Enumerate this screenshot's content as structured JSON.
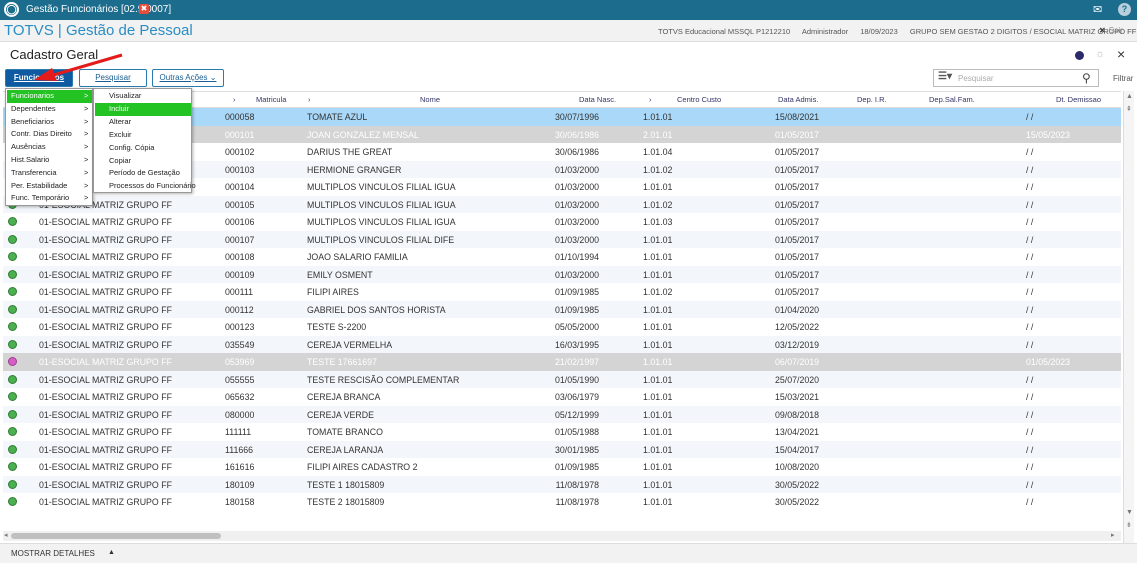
{
  "window": {
    "title": "Gestão Funcionários [02.9.0007]",
    "close_glyph": "✖"
  },
  "app": {
    "name": "TOTVS | Gestão de Pessoal",
    "environment": "TOTVS Educacional MSSQL P1212210",
    "user": "Administrador",
    "date": "18/09/2023",
    "company": "GRUPO SEM GESTAO 2 DIGITOS / ESOCIAL MATRIZ GRUPO FF",
    "exit_label": "Sair"
  },
  "page": {
    "title": "Cadastro Geral"
  },
  "toolbar": {
    "funcionarios_label": "Funcionarios",
    "pesquisar_label": "Pesquisar",
    "outras_acoes_label": "Outras Ações",
    "search_placeholder": "Pesquisar",
    "filter_label": "Filtrar"
  },
  "menu": {
    "items": [
      "Funcionarios",
      "Dependentes",
      "Beneficiarios",
      "Contr. Dias Direito",
      "Ausências",
      "Hist.Salario",
      "Transferencia",
      "Per. Estabilidade",
      "Func. Temporário"
    ],
    "chevron": ">",
    "submenu": [
      "Visualizar",
      "Incluir",
      "Alterar",
      "Excluir",
      "Config. Cópia",
      "Copiar",
      "Período de Gestação",
      "Processos do Funcionário"
    ],
    "highlighted_item": "Funcionarios",
    "highlighted_subitem": "Incluir"
  },
  "grid": {
    "headers": {
      "matricula": "Matricula",
      "nome": "Nome",
      "data_nasc": "Data Nasc.",
      "centro_custo": "Centro Custo",
      "data_admis": "Data Admis.",
      "dep_ir": "Dep. I.R.",
      "dep_sal_fam": "Dep.Sal.Fam.",
      "dt_demissao": "Dt. Demissao"
    },
    "rows": [
      {
        "filial": "",
        "matricula": "000058",
        "nome": "TOMATE AZUL",
        "nasc": "30/07/1996",
        "cc": "1.01.01",
        "admis": "15/08/2021",
        "dem": "/ /"
      },
      {
        "filial": "",
        "matricula": "000101",
        "nome": "JOAN GONZALEZ MENSAL",
        "nasc": "30/06/1986",
        "cc": "2.01.01",
        "admis": "01/05/2017",
        "dem": "15/05/2023"
      },
      {
        "filial": "",
        "matricula": "000102",
        "nome": "DARIUS THE GREAT",
        "nasc": "30/06/1986",
        "cc": "1.01.04",
        "admis": "01/05/2017",
        "dem": "/ /"
      },
      {
        "filial": "",
        "matricula": "000103",
        "nome": "HERMIONE GRANGER",
        "nasc": "01/03/2000",
        "cc": "1.01.02",
        "admis": "01/05/2017",
        "dem": "/ /"
      },
      {
        "filial": "",
        "matricula": "000104",
        "nome": "MULTIPLOS VINCULOS FILIAL IGUA",
        "nasc": "01/03/2000",
        "cc": "1.01.01",
        "admis": "01/05/2017",
        "dem": "/ /"
      },
      {
        "filial": "01-ESOCIAL MATRIZ GRUPO FF",
        "matricula": "000105",
        "nome": "MULTIPLOS VINCULOS FILIAL IGUA",
        "nasc": "01/03/2000",
        "cc": "1.01.02",
        "admis": "01/05/2017",
        "dem": "/ /"
      },
      {
        "filial": "01-ESOCIAL MATRIZ GRUPO FF",
        "matricula": "000106",
        "nome": "MULTIPLOS VINCULOS FILIAL IGUA",
        "nasc": "01/03/2000",
        "cc": "1.01.03",
        "admis": "01/05/2017",
        "dem": "/ /"
      },
      {
        "filial": "01-ESOCIAL MATRIZ GRUPO FF",
        "matricula": "000107",
        "nome": "MULTIPLOS VINCULOS FILIAL DIFE",
        "nasc": "01/03/2000",
        "cc": "1.01.01",
        "admis": "01/05/2017",
        "dem": "/ /"
      },
      {
        "filial": "01-ESOCIAL MATRIZ GRUPO FF",
        "matricula": "000108",
        "nome": "JOAO SALARIO FAMILIA",
        "nasc": "01/10/1994",
        "cc": "1.01.01",
        "admis": "01/05/2017",
        "dem": "/ /"
      },
      {
        "filial": "01-ESOCIAL MATRIZ GRUPO FF",
        "matricula": "000109",
        "nome": "EMILY OSMENT",
        "nasc": "01/03/2000",
        "cc": "1.01.01",
        "admis": "01/05/2017",
        "dem": "/ /"
      },
      {
        "filial": "01-ESOCIAL MATRIZ GRUPO FF",
        "matricula": "000111",
        "nome": "FILIPI AIRES",
        "nasc": "01/09/1985",
        "cc": "1.01.02",
        "admis": "01/05/2017",
        "dem": "/ /"
      },
      {
        "filial": "01-ESOCIAL MATRIZ GRUPO FF",
        "matricula": "000112",
        "nome": "GABRIEL DOS SANTOS HORISTA",
        "nasc": "01/09/1985",
        "cc": "1.01.01",
        "admis": "01/04/2020",
        "dem": "/ /"
      },
      {
        "filial": "01-ESOCIAL MATRIZ GRUPO FF",
        "matricula": "000123",
        "nome": "TESTE S-2200",
        "nasc": "05/05/2000",
        "cc": "1.01.01",
        "admis": "12/05/2022",
        "dem": "/ /"
      },
      {
        "filial": "01-ESOCIAL MATRIZ GRUPO FF",
        "matricula": "035549",
        "nome": "CEREJA VERMELHA",
        "nasc": "16/03/1995",
        "cc": "1.01.01",
        "admis": "03/12/2019",
        "dem": "/ /"
      },
      {
        "filial": "01-ESOCIAL MATRIZ GRUPO FF",
        "matricula": "053969",
        "nome": "TESTE 17661697",
        "nasc": "21/02/1997",
        "cc": "1.01.01",
        "admis": "06/07/2019",
        "dem": "01/05/2023"
      },
      {
        "filial": "01-ESOCIAL MATRIZ GRUPO FF",
        "matricula": "055555",
        "nome": "TESTE RESCISÃO COMPLEMENTAR",
        "nasc": "01/05/1990",
        "cc": "1.01.01",
        "admis": "25/07/2020",
        "dem": "/ /"
      },
      {
        "filial": "01-ESOCIAL MATRIZ GRUPO FF",
        "matricula": "065632",
        "nome": "CEREJA BRANCA",
        "nasc": "03/06/1979",
        "cc": "1.01.01",
        "admis": "15/03/2021",
        "dem": "/ /"
      },
      {
        "filial": "01-ESOCIAL MATRIZ GRUPO FF",
        "matricula": "080000",
        "nome": "CEREJA VERDE",
        "nasc": "05/12/1999",
        "cc": "1.01.01",
        "admis": "09/08/2018",
        "dem": "/ /"
      },
      {
        "filial": "01-ESOCIAL MATRIZ GRUPO FF",
        "matricula": "111111",
        "nome": "TOMATE BRANCO",
        "nasc": "01/05/1988",
        "cc": "1.01.01",
        "admis": "13/04/2021",
        "dem": "/ /"
      },
      {
        "filial": "01-ESOCIAL MATRIZ GRUPO FF",
        "matricula": "111666",
        "nome": "CEREJA LARANJA",
        "nasc": "30/01/1985",
        "cc": "1.01.01",
        "admis": "15/04/2017",
        "dem": "/ /"
      },
      {
        "filial": "01-ESOCIAL MATRIZ GRUPO FF",
        "matricula": "161616",
        "nome": "FILIPI AIRES CADASTRO 2",
        "nasc": "01/09/1985",
        "cc": "1.01.01",
        "admis": "10/08/2020",
        "dem": "/ /"
      },
      {
        "filial": "01-ESOCIAL MATRIZ GRUPO FF",
        "matricula": "180109",
        "nome": "TESTE 1 18015809",
        "nasc": "11/08/1978",
        "cc": "1.01.01",
        "admis": "30/05/2022",
        "dem": "/ /"
      },
      {
        "filial": "01-ESOCIAL MATRIZ GRUPO FF",
        "matricula": "180158",
        "nome": "TESTE 2 18015809",
        "nasc": "11/08/1978",
        "cc": "1.01.01",
        "admis": "30/05/2022",
        "dem": "/ /"
      }
    ],
    "selected_row": 0,
    "dimmed_rows": [
      1,
      14
    ],
    "pink_status_rows": [
      14
    ]
  },
  "footer": {
    "details_label": "MOSTRAR DETALHES",
    "arrow": "▲"
  },
  "colors": {
    "titlebar": "#1b6c8d",
    "accent": "#2a8dc4",
    "selected_row": "#a9d8f8",
    "highlight": "#22c322",
    "status_active": "#4caf50",
    "status_inactive": "#d65dc6"
  },
  "icons": [
    "totvs-logo-icon",
    "close-tab-icon",
    "mail-icon",
    "help-icon",
    "theme-dot-icon",
    "settings-icon",
    "close-icon",
    "grid-view-icon",
    "search-icon",
    "chevron-down-icon",
    "red-arrow-annotation-icon"
  ]
}
